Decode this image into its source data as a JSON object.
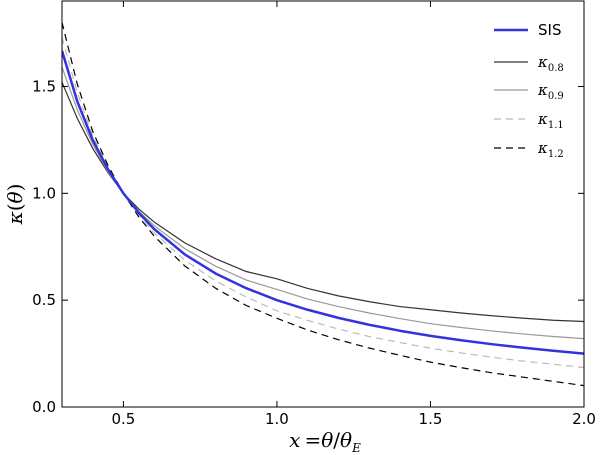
{
  "chart_data": {
    "type": "line",
    "xlabel": "x = θ/θ_E",
    "ylabel": "κ(θ)",
    "xlim": [
      0.3,
      2.0
    ],
    "ylim": [
      0.0,
      1.9
    ],
    "xticks": [
      {
        "value": 0.5,
        "label": "0.5"
      },
      {
        "value": 1.0,
        "label": "1.0"
      },
      {
        "value": 1.5,
        "label": "1.5"
      },
      {
        "value": 2.0,
        "label": "2.0"
      }
    ],
    "yticks": [
      {
        "value": 0.0,
        "label": "0.0"
      },
      {
        "value": 0.5,
        "label": "0.5"
      },
      {
        "value": 1.0,
        "label": "1.0"
      },
      {
        "value": 1.5,
        "label": "1.5"
      }
    ],
    "legend_position": "top-right",
    "grid": false,
    "x": [
      0.3,
      0.35,
      0.4,
      0.45,
      0.5,
      0.55,
      0.6,
      0.7,
      0.8,
      0.9,
      1.0,
      1.1,
      1.2,
      1.3,
      1.4,
      1.5,
      1.6,
      1.7,
      1.8,
      1.9,
      2.0
    ],
    "series": [
      {
        "name": "SIS",
        "legend_main": "SIS",
        "legend_sub": "",
        "color": "#3333dd",
        "dash": "",
        "width": 2.5,
        "values": [
          1.667,
          1.429,
          1.25,
          1.111,
          1.0,
          0.909,
          0.833,
          0.714,
          0.625,
          0.556,
          0.5,
          0.455,
          0.417,
          0.385,
          0.357,
          0.333,
          0.3125,
          0.294,
          0.278,
          0.263,
          0.25
        ]
      },
      {
        "name": "κ0.8",
        "legend_main": "κ",
        "legend_sub": "0.8",
        "color": "#333333",
        "dash": "",
        "width": 1.2,
        "values": [
          1.52,
          1.35,
          1.21,
          1.096,
          1.0,
          0.927,
          0.866,
          0.768,
          0.694,
          0.634,
          0.6,
          0.555,
          0.52,
          0.493,
          0.47,
          0.455,
          0.44,
          0.427,
          0.416,
          0.406,
          0.4
        ]
      },
      {
        "name": "κ0.9",
        "legend_main": "κ",
        "legend_sub": "0.9",
        "color": "#999999",
        "dash": "",
        "width": 1.2,
        "values": [
          1.59,
          1.39,
          1.23,
          1.1,
          1.0,
          0.917,
          0.849,
          0.741,
          0.659,
          0.594,
          0.55,
          0.505,
          0.47,
          0.44,
          0.414,
          0.39,
          0.372,
          0.356,
          0.342,
          0.33,
          0.32
        ]
      },
      {
        "name": "κ1.1",
        "legend_main": "κ",
        "legend_sub": "1.1",
        "color": "#bbbbbb",
        "dash": "7,5",
        "width": 1.2,
        "values": [
          1.73,
          1.47,
          1.27,
          1.12,
          1.0,
          0.9,
          0.815,
          0.687,
          0.59,
          0.515,
          0.45,
          0.405,
          0.365,
          0.33,
          0.302,
          0.275,
          0.253,
          0.233,
          0.215,
          0.2,
          0.185
        ]
      },
      {
        "name": "κ1.2",
        "legend_main": "κ",
        "legend_sub": "1.2",
        "color": "#000000",
        "dash": "7,5",
        "width": 1.2,
        "values": [
          1.8,
          1.51,
          1.29,
          1.13,
          1.0,
          0.89,
          0.8,
          0.66,
          0.556,
          0.475,
          0.415,
          0.36,
          0.315,
          0.276,
          0.242,
          0.21,
          0.184,
          0.16,
          0.14,
          0.12,
          0.1
        ]
      }
    ]
  }
}
